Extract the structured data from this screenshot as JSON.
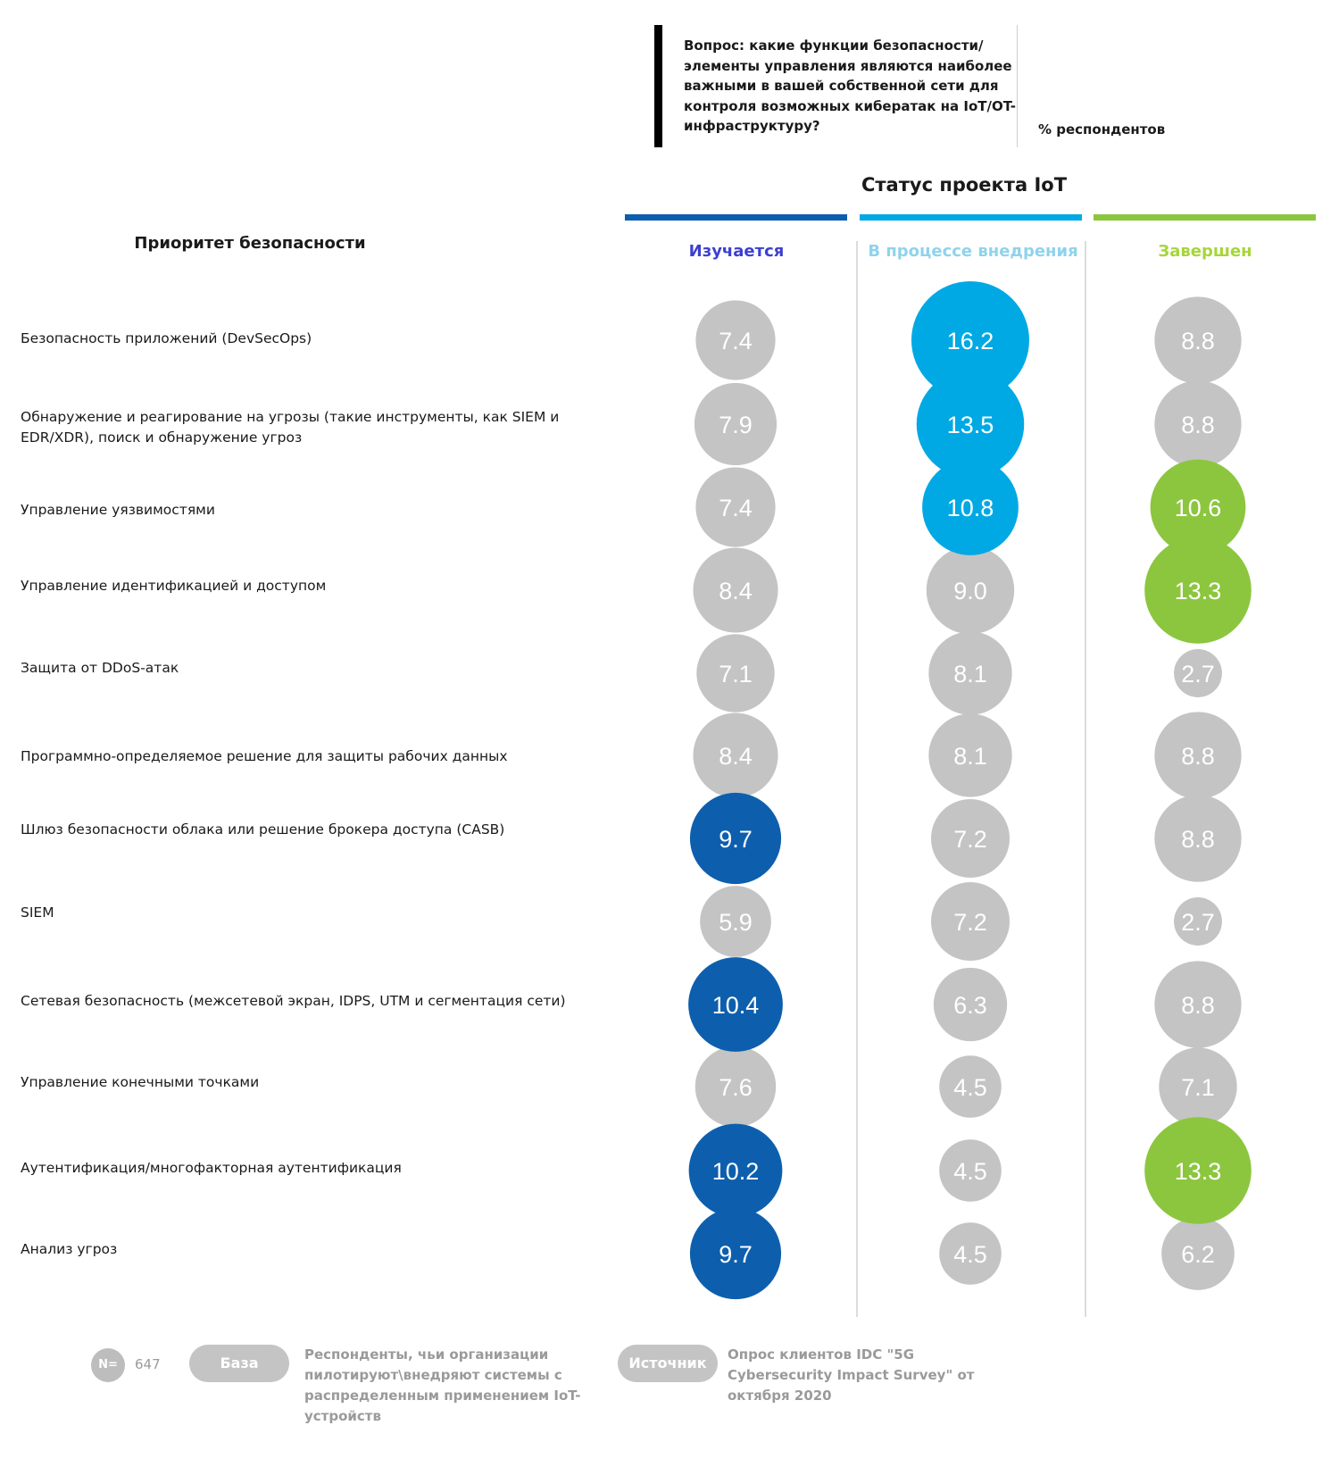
{
  "header": {
    "question": "Вопрос: какие функции безопасности/ элементы управления являются наиболее важными в вашей собственной сети для контроля возможных кибератак на IoT/OT-инфраструктуру?",
    "units": "% респондентов",
    "status_title": "Статус проекта IoT",
    "priority_title": "Приоритет безопасности"
  },
  "colors": {
    "exploring": "#0d5fae",
    "implementing": "#00a9e4",
    "completed": "#8cc63f",
    "neutral": "#c4c4c4",
    "exploring_title": "#3c3fd0",
    "implementing_title": "#8fd3ec",
    "completed_title": "#a6d63a"
  },
  "chart_data": {
    "type": "bubble-table",
    "title": "Статус проекта IoT",
    "row_header": "Приоритет безопасности",
    "units": "% респондентов",
    "columns": [
      "Изучается",
      "В процессе внедрения",
      "Завершен"
    ],
    "rows": [
      {
        "label": "Безопасность приложений (DevSecOps)",
        "values": [
          7.4,
          16.2,
          8.8
        ],
        "highlight": [
          false,
          true,
          false
        ]
      },
      {
        "label": "Обнаружение и реагирование на угрозы (такие инструменты, как SIEM и EDR/XDR), поиск и обнаружение угроз",
        "values": [
          7.9,
          13.5,
          8.8
        ],
        "highlight": [
          false,
          true,
          false
        ]
      },
      {
        "label": "Управление уязвимостями",
        "values": [
          7.4,
          10.8,
          10.6
        ],
        "highlight": [
          false,
          true,
          true
        ]
      },
      {
        "label": "Управление идентификацией и доступом",
        "values": [
          8.4,
          9.0,
          13.3
        ],
        "highlight": [
          false,
          false,
          true
        ]
      },
      {
        "label": "Защита от DDoS-атак",
        "values": [
          7.1,
          8.1,
          2.7
        ],
        "highlight": [
          false,
          false,
          false
        ]
      },
      {
        "label": "Программно-определяемое решение для защиты рабочих данных",
        "values": [
          8.4,
          8.1,
          8.8
        ],
        "highlight": [
          false,
          false,
          false
        ]
      },
      {
        "label": "Шлюз безопасности облака или решение брокера доступа (CASB)",
        "values": [
          9.7,
          7.2,
          8.8
        ],
        "highlight": [
          true,
          false,
          false
        ]
      },
      {
        "label": "SIEM",
        "values": [
          5.9,
          7.2,
          2.7
        ],
        "highlight": [
          false,
          false,
          false
        ]
      },
      {
        "label": "Сетевая безопасность (межсетевой экран, IDPS, UTM и сегментация сети)",
        "values": [
          10.4,
          6.3,
          8.8
        ],
        "highlight": [
          true,
          false,
          false
        ]
      },
      {
        "label": "Управление конечными точками",
        "values": [
          7.6,
          4.5,
          7.1
        ],
        "highlight": [
          false,
          false,
          false
        ]
      },
      {
        "label": "Аутентификация/многофакторная аутентификация",
        "values": [
          10.2,
          4.5,
          13.3
        ],
        "highlight": [
          true,
          false,
          true
        ]
      },
      {
        "label": "Анализ угроз",
        "values": [
          9.7,
          4.5,
          6.2
        ],
        "highlight": [
          true,
          false,
          false
        ]
      }
    ]
  },
  "footer": {
    "n_label": "N=",
    "n_value": "647",
    "base_label": "База",
    "base_text": "Респонденты, чьи организации пилотируют\\внедряют системы с распределенным применением IoT-устройств",
    "source_label": "Источник",
    "source_text": "Опрос клиентов IDC \"5G Cybersecurity Impact Survey\" от октября 2020"
  }
}
